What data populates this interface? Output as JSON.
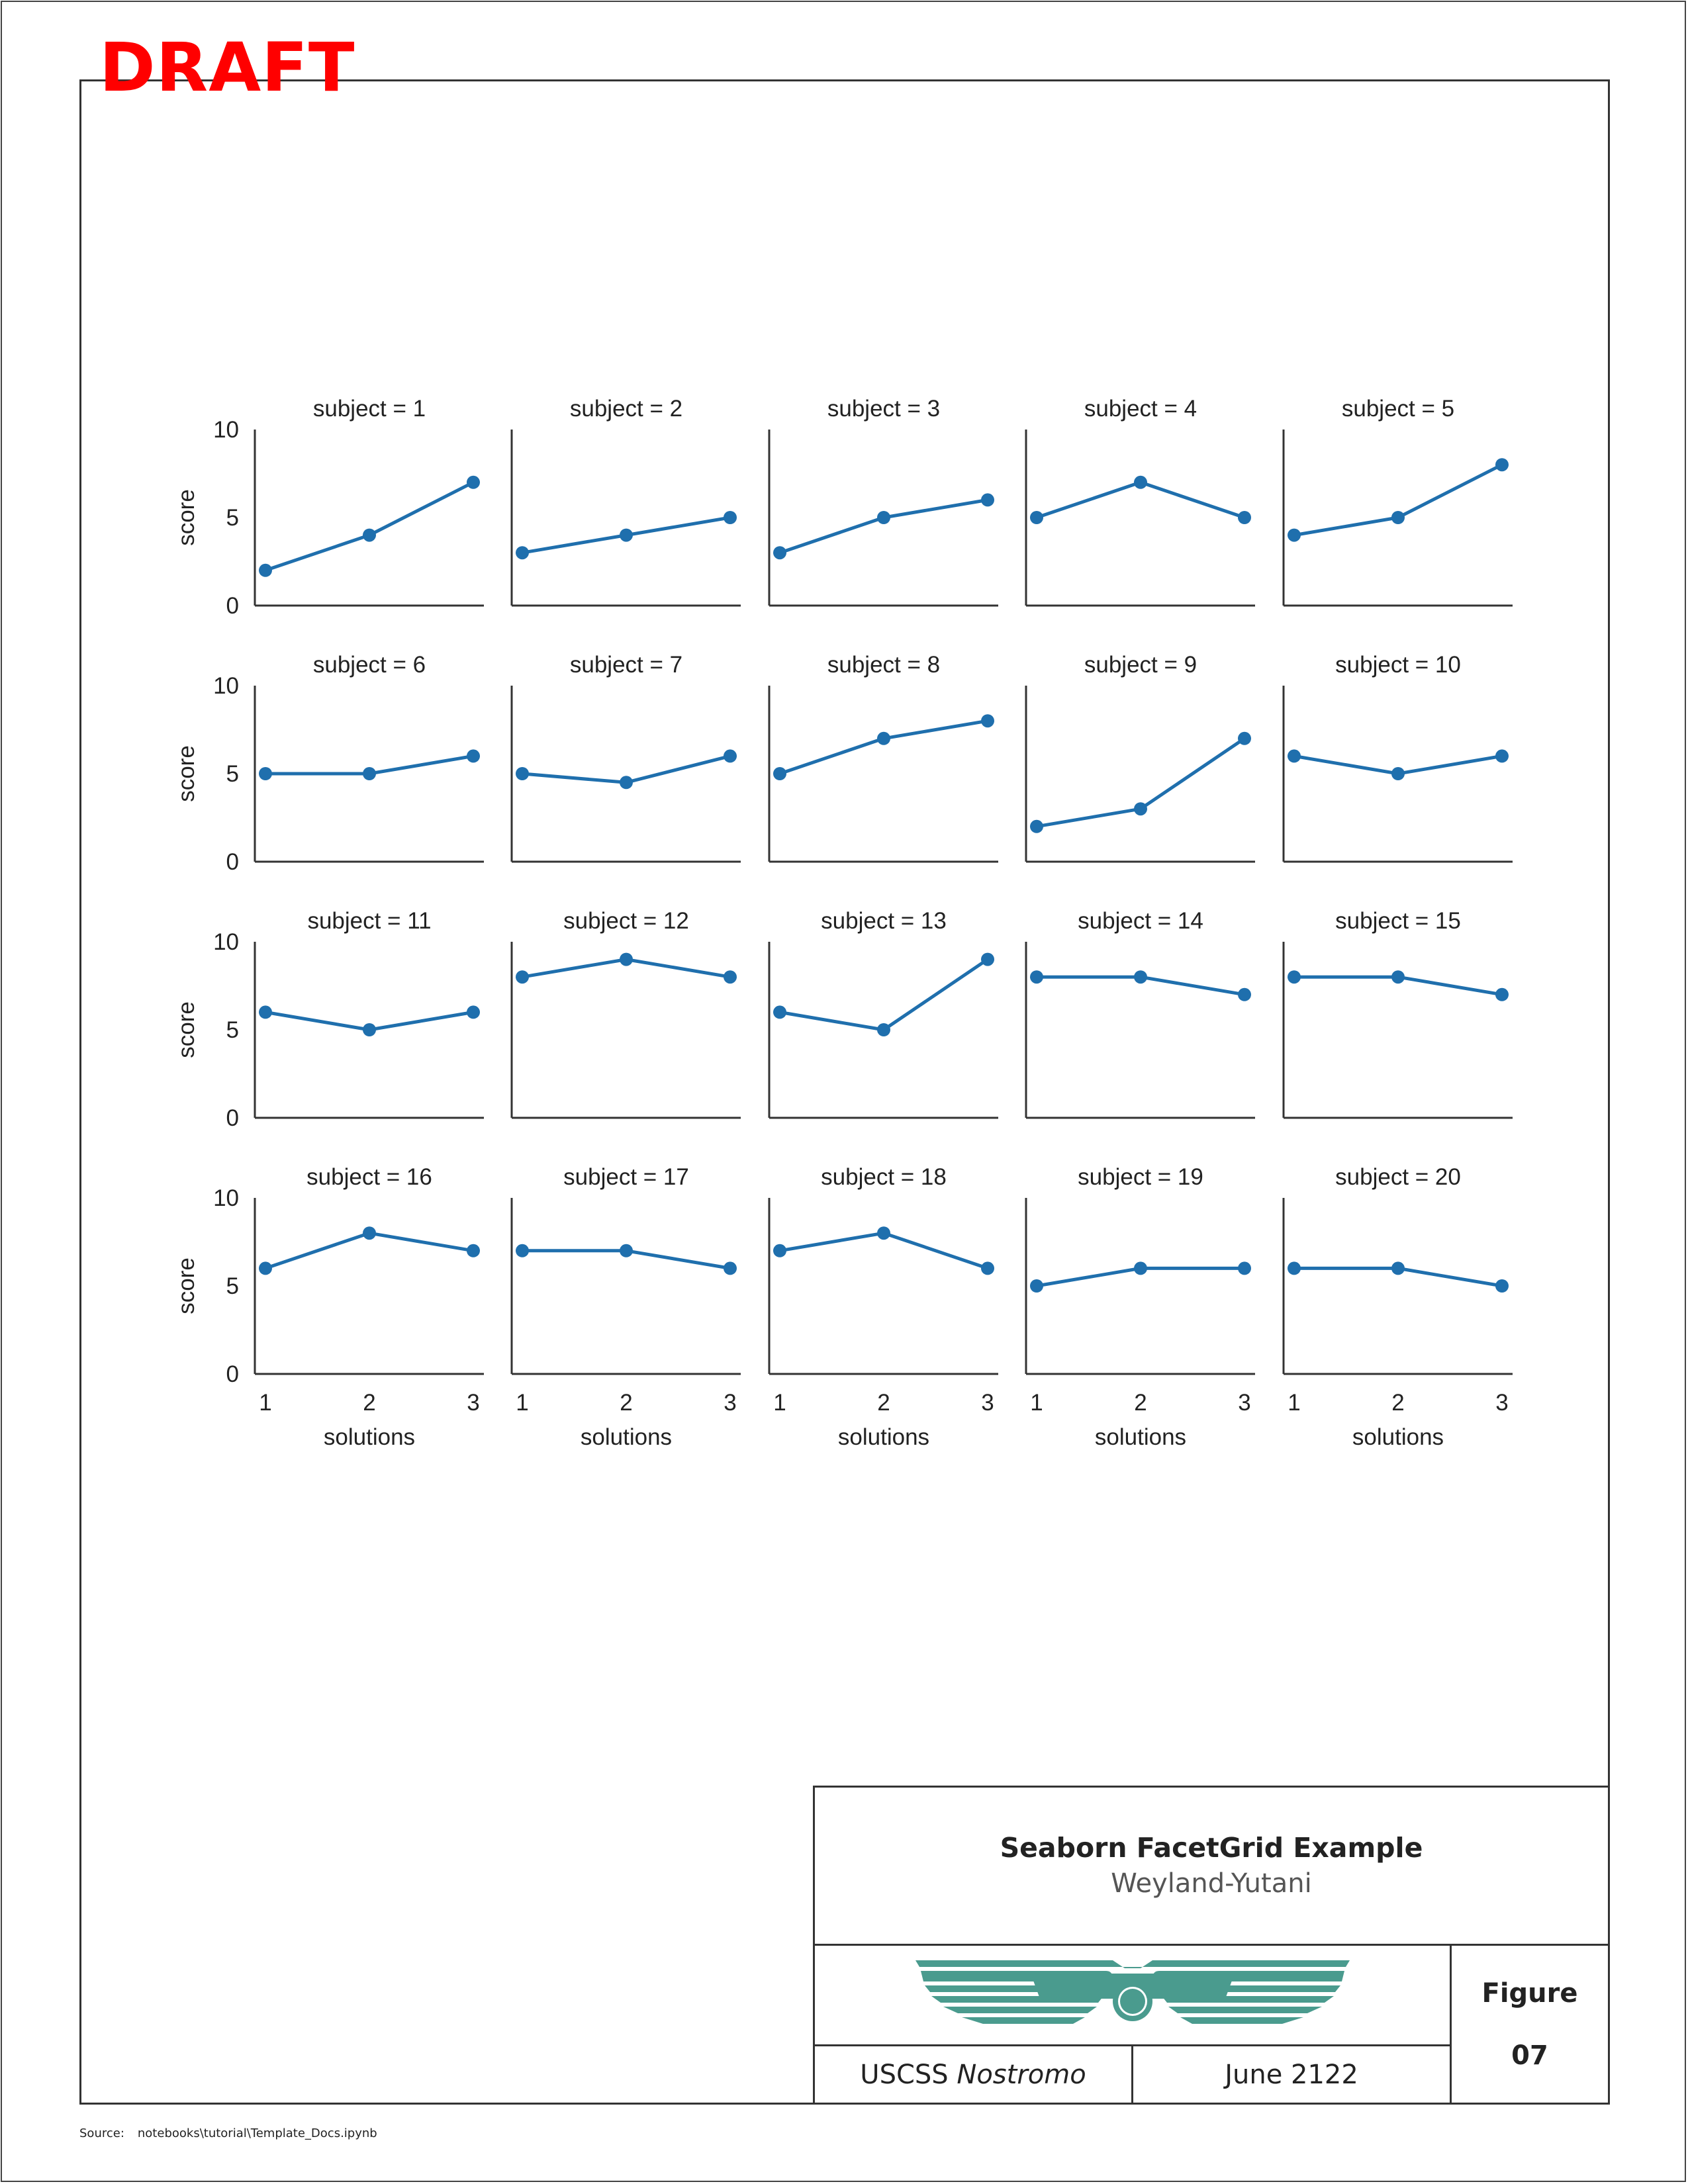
{
  "draft_label": "DRAFT",
  "title_block": {
    "title": "Seaborn FacetGrid Example",
    "subtitle": "Weyland-Yutani",
    "ship_prefix": "USCSS",
    "ship_name": "Nostromo",
    "date": "June 2122",
    "figure_label": "Figure",
    "figure_number": "07",
    "logo_icon": "weyland-yutani-wings-logo",
    "logo_color": "#4a9b8e"
  },
  "source": {
    "label": "Source:",
    "path": "notebooks\\tutorial\\Template_Docs.ipynb"
  },
  "chart_data": {
    "type": "line",
    "facet_grid": {
      "rows": 4,
      "cols": 5
    },
    "x": [
      1,
      2,
      3
    ],
    "xlabel": "solutions",
    "ylabel": "score",
    "ylim": [
      0,
      10
    ],
    "yticks": [
      0,
      5,
      10
    ],
    "xticks": [
      1,
      2,
      3
    ],
    "color": "#1f6fad",
    "grid": false,
    "facet_title_prefix": "subject = ",
    "panels": [
      {
        "subject": 1,
        "values": [
          2,
          4,
          7
        ]
      },
      {
        "subject": 2,
        "values": [
          3,
          4,
          5
        ]
      },
      {
        "subject": 3,
        "values": [
          3,
          5,
          6
        ]
      },
      {
        "subject": 4,
        "values": [
          5,
          7,
          5
        ]
      },
      {
        "subject": 5,
        "values": [
          4,
          5,
          8
        ]
      },
      {
        "subject": 6,
        "values": [
          5,
          5,
          6
        ]
      },
      {
        "subject": 7,
        "values": [
          5,
          4.5,
          6
        ]
      },
      {
        "subject": 8,
        "values": [
          5,
          7,
          8
        ]
      },
      {
        "subject": 9,
        "values": [
          2,
          3,
          7
        ]
      },
      {
        "subject": 10,
        "values": [
          6,
          5,
          6
        ]
      },
      {
        "subject": 11,
        "values": [
          6,
          5,
          6
        ]
      },
      {
        "subject": 12,
        "values": [
          8,
          9,
          8
        ]
      },
      {
        "subject": 13,
        "values": [
          6,
          5,
          9
        ]
      },
      {
        "subject": 14,
        "values": [
          8,
          8,
          7
        ]
      },
      {
        "subject": 15,
        "values": [
          8,
          8,
          7
        ]
      },
      {
        "subject": 16,
        "values": [
          6,
          8,
          7
        ]
      },
      {
        "subject": 17,
        "values": [
          7,
          7,
          6
        ]
      },
      {
        "subject": 18,
        "values": [
          7,
          8,
          6
        ]
      },
      {
        "subject": 19,
        "values": [
          5,
          6,
          6
        ]
      },
      {
        "subject": 20,
        "values": [
          6,
          6,
          5
        ]
      }
    ]
  }
}
